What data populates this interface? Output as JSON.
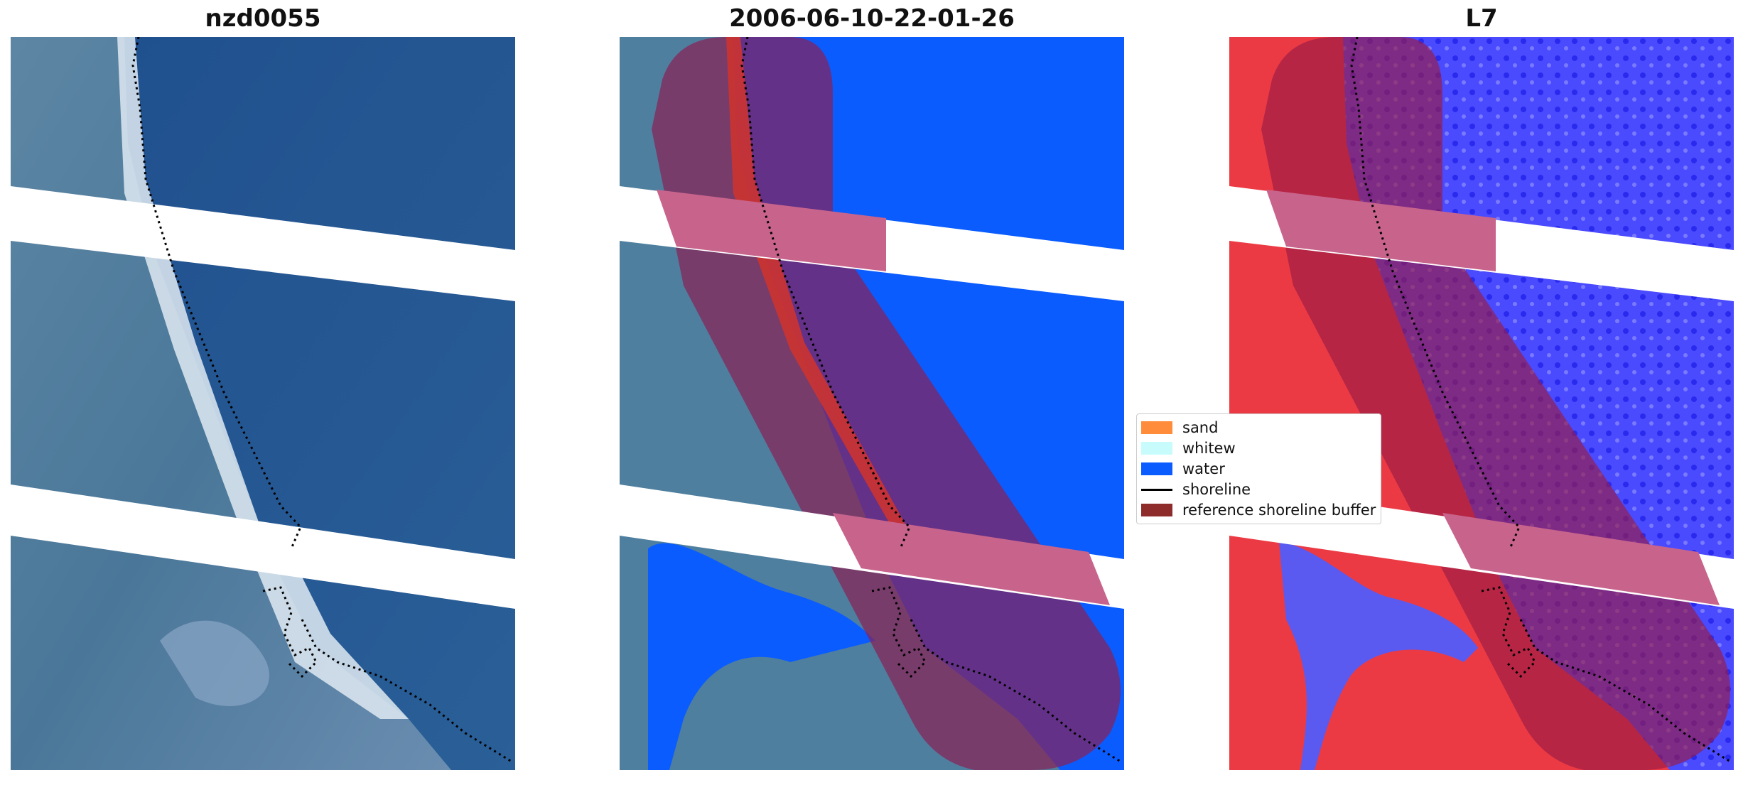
{
  "panels": [
    {
      "title": "nzd0055"
    },
    {
      "title": "2006-06-10-22-01-26"
    },
    {
      "title": "L7"
    }
  ],
  "legend": {
    "items": [
      {
        "label": "sand",
        "color": "#ff8c3a"
      },
      {
        "label": "whitew",
        "color": "#c8fcfc"
      },
      {
        "label": "water",
        "color": "#0a5cff"
      },
      {
        "label": "shoreline",
        "color": "#000000"
      },
      {
        "label": "reference shoreline buffer",
        "color": "#8e2b2b"
      }
    ]
  },
  "colors": {
    "ocean": "#1e4e8c",
    "land": "#4f7f9f",
    "classified_water": "#0a5cff",
    "buffer": "#8a1f55",
    "index_land": "#e8323c",
    "index_water": "#3c3cff"
  }
}
